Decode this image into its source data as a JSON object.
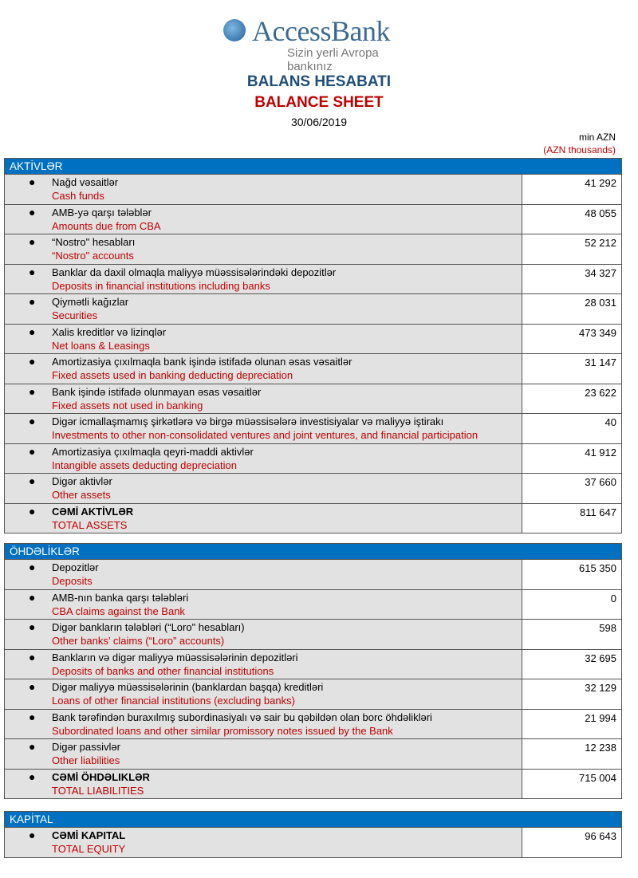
{
  "logo": {
    "name": "AccessBank",
    "tagline": "Sizin yerli Avropa bankınız"
  },
  "title_az": "BALANS HESABATI",
  "title_en": "BALANCE SHEET",
  "date": "30/06/2019",
  "unit_az": "min AZN",
  "unit_en": "(AZN thousands)",
  "sections": [
    {
      "title": "AKTİVLƏR",
      "rows": [
        {
          "az": "Nağd vəsaitlər",
          "en": "Cash funds",
          "value": "41 292"
        },
        {
          "az": "AMB-yə qarşı tələblər",
          "en": "Amounts due from CBA",
          "value": "48 055"
        },
        {
          "az": "“Nostro\" hesabları",
          "en": "“Nostro\" accounts",
          "value": "52 212"
        },
        {
          "az": "Banklar da daxil olmaqla maliyyə müəssisələrindəki depozitlər",
          "en": "Deposits in financial institutions including banks",
          "value": "34 327"
        },
        {
          "az": "Qiymətli kağızlar",
          "en": "Securities",
          "value": "28 031"
        },
        {
          "az": "Xalis kreditlər və lizinqlər",
          "en": "Net loans & Leasings",
          "value": "473 349"
        },
        {
          "az": "Amortizasiya çıxılmaqla bank işində istifadə olunan əsas vəsaitlər",
          "en": "Fixed assets used in banking deducting depreciation",
          "value": "31 147"
        },
        {
          "az": "Bank işində istifadə olunmayan əsas vəsaitlər",
          "en": "Fixed assets not used in banking",
          "value": "23 622"
        },
        {
          "az": "Digər icmallaşmamış şirkətlərə və birgə müəssisələrə investisiyalar və maliyyə iştirakı",
          "en": "Investments to other non-consolidated ventures and joint ventures, and financial participation",
          "value": "40"
        },
        {
          "az": "Amortizasiya çıxılmaqla qeyri-maddi aktivlər",
          "en": "Intangible assets deducting depreciation",
          "value": "41 912"
        },
        {
          "az": "Digər aktivlər",
          "en": "Other assets",
          "value": "37 660"
        },
        {
          "az": "CƏMİ AKTİVLƏR",
          "en": "TOTAL ASSETS",
          "value": "811 647",
          "bold": true
        }
      ]
    },
    {
      "title": "ÖHDƏLİKLƏR",
      "rows": [
        {
          "az": "Depozitlər",
          "en": "Deposits",
          "value": "615 350"
        },
        {
          "az": "AMB-nın banka qarşı tələbləri",
          "en": "CBA claims against the Bank",
          "value": "0"
        },
        {
          "az": "Digər bankların tələbləri (“Loro\" hesabları)",
          "en": "Other banks’ claims (“Loro” accounts)",
          "value": "598"
        },
        {
          "az": "Bankların və digər maliyyə müəssisələrinin depozitləri",
          "en": "Deposits of banks and other financial institutions",
          "value": "32 695"
        },
        {
          "az": "Digər maliyyə müəssisələrinin (banklardan başqa) kreditləri",
          "en": "Loans of other financial institutions (excluding banks)",
          "value": "32 129"
        },
        {
          "az": "Bank tərəfindən buraxılmış subordinasiyalı və sair bu qəbildən olan borc öhdəlikləri",
          "en": "Subordinated loans and other similar promissory notes issued by the Bank",
          "value": "21 994"
        },
        {
          "az": "Digər passivlər",
          "en": "Other liabilities",
          "value": "12 238"
        },
        {
          "az": "CƏMİ ÖHDƏLIKLƏR",
          "en": "TOTAL LIABILITIES",
          "value": "715 004",
          "bold": true
        }
      ]
    },
    {
      "title": "KAPİTAL",
      "rows": [
        {
          "az": "CƏMİ KAPITAL",
          "en": "TOTAL EQUITY",
          "value": "96 643",
          "bold": true
        }
      ]
    }
  ]
}
